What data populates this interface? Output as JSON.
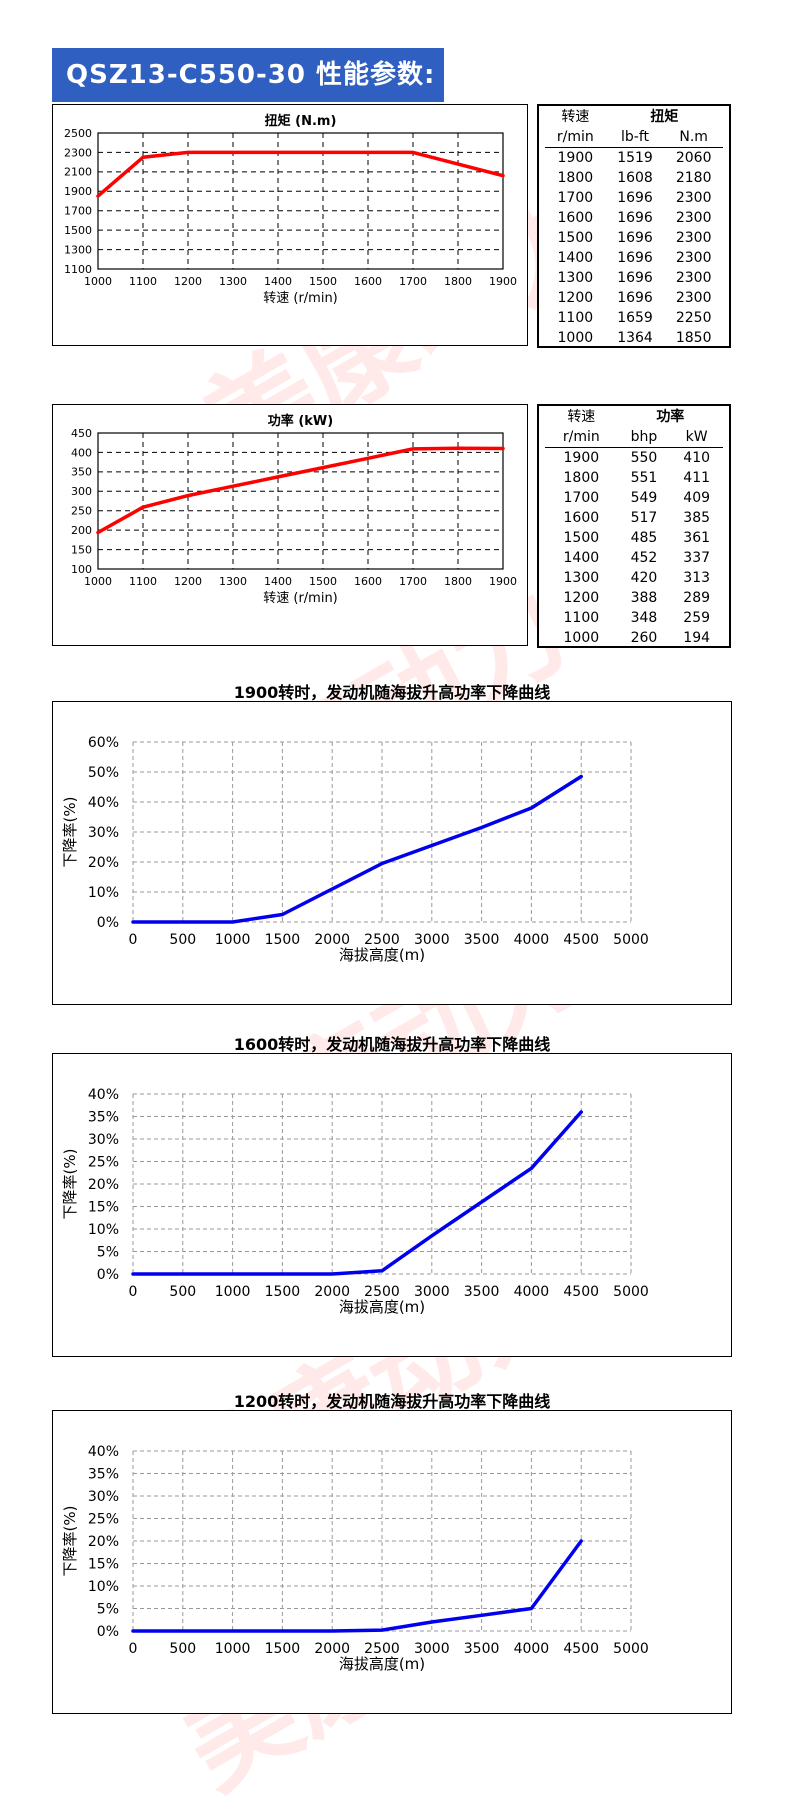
{
  "page_title": "QSZ13-C550-30 性能参数:",
  "watermark": "美康动力",
  "colors": {
    "banner": "#2f5fc0",
    "red_line": "#ff0000",
    "blue_line": "#0000ee"
  },
  "torque_table": {
    "col1_top": "转速",
    "group_top": "扭矩",
    "col1_unit": "r/min",
    "col2_unit": "lb-ft",
    "col3_unit": "N.m",
    "rows": [
      [
        "1900",
        "1519",
        "2060"
      ],
      [
        "1800",
        "1608",
        "2180"
      ],
      [
        "1700",
        "1696",
        "2300"
      ],
      [
        "1600",
        "1696",
        "2300"
      ],
      [
        "1500",
        "1696",
        "2300"
      ],
      [
        "1400",
        "1696",
        "2300"
      ],
      [
        "1300",
        "1696",
        "2300"
      ],
      [
        "1200",
        "1696",
        "2300"
      ],
      [
        "1100",
        "1659",
        "2250"
      ],
      [
        "1000",
        "1364",
        "1850"
      ]
    ]
  },
  "power_table": {
    "col1_top": "转速",
    "group_top": "功率",
    "col1_unit": "r/min",
    "col2_unit": "bhp",
    "col3_unit": "kW",
    "rows": [
      [
        "1900",
        "550",
        "410"
      ],
      [
        "1800",
        "551",
        "411"
      ],
      [
        "1700",
        "549",
        "409"
      ],
      [
        "1600",
        "517",
        "385"
      ],
      [
        "1500",
        "485",
        "361"
      ],
      [
        "1400",
        "452",
        "337"
      ],
      [
        "1300",
        "420",
        "313"
      ],
      [
        "1200",
        "388",
        "289"
      ],
      [
        "1100",
        "348",
        "259"
      ],
      [
        "1000",
        "260",
        "194"
      ]
    ]
  },
  "chart_data": [
    {
      "type": "line",
      "title": "扭矩 (N.m)",
      "xlabel": "转速 (r/min)",
      "ylabel": "",
      "x": [
        1000,
        1100,
        1200,
        1300,
        1400,
        1500,
        1600,
        1700,
        1800,
        1900
      ],
      "y": [
        1850,
        2250,
        2300,
        2300,
        2300,
        2300,
        2300,
        2300,
        2180,
        2060
      ],
      "xticks": [
        "1000",
        "1100",
        "1200",
        "1300",
        "1400",
        "1500",
        "1600",
        "1700",
        "1800",
        "1900"
      ],
      "yticks": [
        "1100",
        "1300",
        "1500",
        "1700",
        "1900",
        "2100",
        "2300",
        "2500"
      ],
      "xlim": [
        1000,
        1900
      ],
      "ylim": [
        1100,
        2500
      ],
      "grid": true,
      "color": "#ff0000"
    },
    {
      "type": "line",
      "title": "功率 (kW)",
      "xlabel": "转速 (r/min)",
      "ylabel": "",
      "x": [
        1000,
        1100,
        1200,
        1300,
        1400,
        1500,
        1600,
        1700,
        1800,
        1900
      ],
      "y": [
        194,
        259,
        289,
        313,
        337,
        361,
        385,
        409,
        411,
        410
      ],
      "xticks": [
        "1000",
        "1100",
        "1200",
        "1300",
        "1400",
        "1500",
        "1600",
        "1700",
        "1800",
        "1900"
      ],
      "yticks": [
        "100",
        "150",
        "200",
        "250",
        "300",
        "350",
        "400",
        "450"
      ],
      "xlim": [
        1000,
        1900
      ],
      "ylim": [
        100,
        450
      ],
      "grid": true,
      "color": "#ff0000"
    },
    {
      "type": "line",
      "title": "1900转时，发动机随海拔升高功率下降曲线",
      "xlabel": "海拔高度(m)",
      "ylabel": "下降率(%)",
      "x": [
        0,
        500,
        1000,
        1500,
        2000,
        2500,
        3000,
        3500,
        4000,
        4500
      ],
      "y": [
        0,
        0,
        0,
        2.5,
        11,
        19.5,
        25.5,
        31.5,
        38,
        48.5
      ],
      "xticks": [
        "0",
        "500",
        "1000",
        "1500",
        "2000",
        "2500",
        "3000",
        "3500",
        "4000",
        "4500",
        "5000"
      ],
      "yticks": [
        "0%",
        "10%",
        "20%",
        "30%",
        "40%",
        "50%",
        "60%"
      ],
      "xlim": [
        0,
        5000
      ],
      "ylim": [
        0,
        60
      ],
      "grid": true,
      "color": "#0000ee"
    },
    {
      "type": "line",
      "title": "1600转时，发动机随海拔升高功率下降曲线",
      "xlabel": "海拔高度(m)",
      "ylabel": "下降率(%)",
      "x": [
        0,
        500,
        1000,
        1500,
        2000,
        2500,
        3000,
        3500,
        4000,
        4500
      ],
      "y": [
        0,
        0,
        0,
        0,
        0,
        0.7,
        8.5,
        16,
        23.5,
        36
      ],
      "xticks": [
        "0",
        "500",
        "1000",
        "1500",
        "2000",
        "2500",
        "3000",
        "3500",
        "4000",
        "4500",
        "5000"
      ],
      "yticks": [
        "0%",
        "5%",
        "10%",
        "15%",
        "20%",
        "25%",
        "30%",
        "35%",
        "40%"
      ],
      "xlim": [
        0,
        5000
      ],
      "ylim": [
        0,
        40
      ],
      "grid": true,
      "color": "#0000ee"
    },
    {
      "type": "line",
      "title": "1200转时，发动机随海拔升高功率下降曲线",
      "xlabel": "海拔高度(m)",
      "ylabel": "下降率(%)",
      "x": [
        0,
        500,
        1000,
        1500,
        2000,
        2500,
        3000,
        3500,
        4000,
        4500
      ],
      "y": [
        0,
        0,
        0,
        0,
        0,
        0.2,
        2,
        3.5,
        5,
        20
      ],
      "xticks": [
        "0",
        "500",
        "1000",
        "1500",
        "2000",
        "2500",
        "3000",
        "3500",
        "4000",
        "4500",
        "5000"
      ],
      "yticks": [
        "0%",
        "5%",
        "10%",
        "15%",
        "20%",
        "25%",
        "30%",
        "35%",
        "40%"
      ],
      "xlim": [
        0,
        5000
      ],
      "ylim": [
        0,
        40
      ],
      "grid": true,
      "color": "#0000ee"
    }
  ]
}
